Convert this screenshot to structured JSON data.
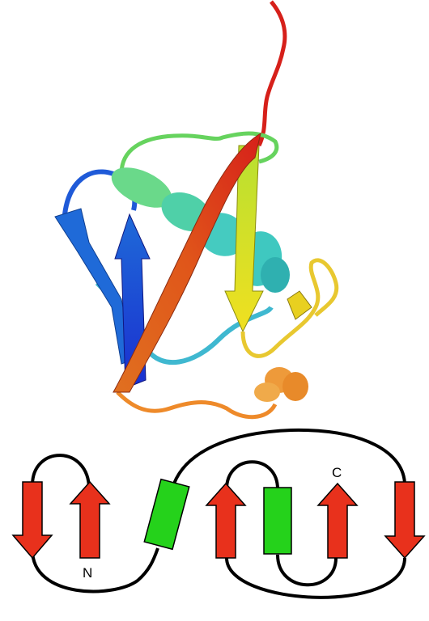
{
  "figure": {
    "kind": "protein-structure-and-topology",
    "structure_render": {
      "style": "ribbon",
      "color_scheme": "rainbow",
      "colors": {
        "blue": "#1a2fd0",
        "light_blue": "#1f6ad8",
        "cyan": "#3fc8c0",
        "green": "#5ad06a",
        "yellow": "#e2e31a",
        "orange": "#ee8a2a",
        "red_orange": "#e0561a",
        "red": "#d6201a"
      }
    },
    "topology": {
      "labels": {
        "n_terminus": "N",
        "c_terminus": "C"
      },
      "colors": {
        "strand": "#e8311c",
        "helix": "#25d21b",
        "outline": "#000000"
      },
      "elements": [
        {
          "type": "strand",
          "direction": "down"
        },
        {
          "type": "strand",
          "direction": "up",
          "terminus": "N"
        },
        {
          "type": "helix"
        },
        {
          "type": "strand",
          "direction": "up"
        },
        {
          "type": "helix"
        },
        {
          "type": "strand",
          "direction": "up",
          "terminus": "C"
        },
        {
          "type": "strand",
          "direction": "down"
        }
      ]
    }
  }
}
